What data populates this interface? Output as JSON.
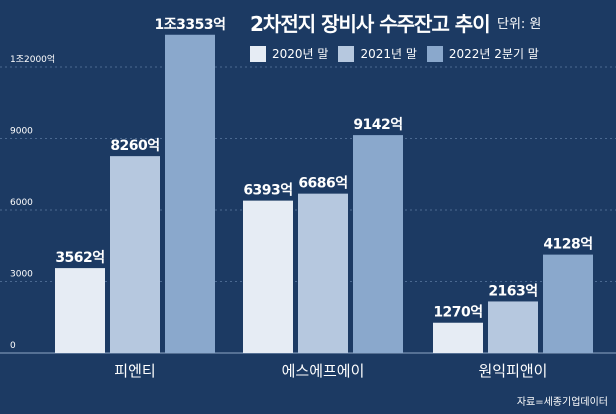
{
  "title": "2차전지 장비사 수주잔고 추이",
  "unit_label": "단위: 원",
  "source": "자료=세종기업데이터",
  "colors": {
    "background": "#1c3a63",
    "series": [
      "#e6ecf4",
      "#b6c8df",
      "#8aa8cc"
    ],
    "grid": "#4b6991",
    "text": "#ffffff"
  },
  "chart_data": {
    "type": "bar",
    "categories": [
      "피엔티",
      "에스에프에이",
      "원익피앤이"
    ],
    "series": [
      {
        "name": "2020년 말",
        "values": [
          3562,
          6393,
          1270
        ],
        "labels": [
          "3562억",
          "6393억",
          "1270억"
        ]
      },
      {
        "name": "2021년 말",
        "values": [
          8260,
          6686,
          2163
        ],
        "labels": [
          "8260억",
          "6686억",
          "2163억"
        ]
      },
      {
        "name": "2022년 2분기 말",
        "values": [
          13353,
          9142,
          4128
        ],
        "labels": [
          "1조3353억",
          "9142억",
          "4128억"
        ]
      }
    ],
    "yticks": [
      0,
      3000,
      6000,
      9000,
      12000
    ],
    "ytick_labels": [
      "0",
      "3000",
      "6000",
      "9000",
      "1조2000억"
    ],
    "ylim": [
      0,
      12000
    ],
    "grid": true,
    "legend_position": "top"
  }
}
